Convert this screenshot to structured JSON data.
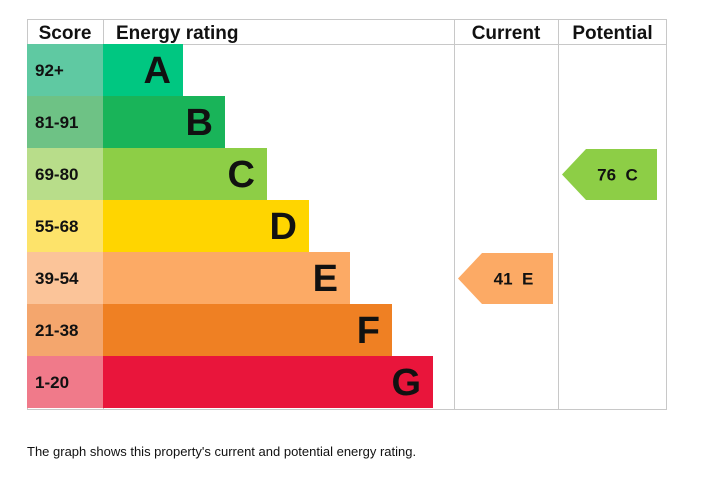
{
  "chart_data": {
    "type": "bar",
    "headers": {
      "score": "Score",
      "rating": "Energy rating",
      "current": "Current",
      "potential": "Potential"
    },
    "bands": [
      {
        "range": "92+",
        "letter": "A",
        "score_bg": "#5fc9a2",
        "color": "#00c781"
      },
      {
        "range": "81-91",
        "letter": "B",
        "score_bg": "#6ec285",
        "color": "#19b459"
      },
      {
        "range": "69-80",
        "letter": "C",
        "score_bg": "#b8dd8a",
        "color": "#8dce46"
      },
      {
        "range": "55-68",
        "letter": "D",
        "score_bg": "#fde36a",
        "color": "#ffd500"
      },
      {
        "range": "39-54",
        "letter": "E",
        "score_bg": "#fbc499",
        "color": "#fcaa65"
      },
      {
        "range": "21-38",
        "letter": "F",
        "score_bg": "#f4a66d",
        "color": "#ef8023"
      },
      {
        "range": "1-20",
        "letter": "G",
        "score_bg": "#f07a8a",
        "color": "#e9153b"
      }
    ],
    "current": {
      "value": 41,
      "letter": "E",
      "label": "41  E",
      "color": "#fcaa65"
    },
    "potential": {
      "value": 76,
      "letter": "C",
      "label": "76  C",
      "color": "#8dce46"
    }
  },
  "caption": "The graph shows this property's current and potential energy rating."
}
